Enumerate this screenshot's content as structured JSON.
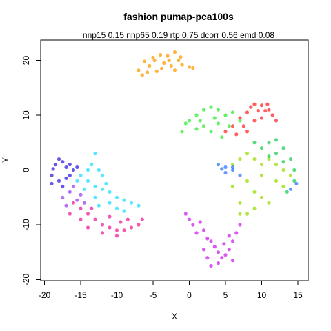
{
  "chart_data": {
    "type": "scatter",
    "title": "fashion pumap-pca100s",
    "subtitle": "nnp15 0.15 nnp65 0.19 rtp 0.75 dcorr 0.56 emd 0.08",
    "xlabel": "X",
    "ylabel": "Y",
    "xlim": [
      -21,
      16
    ],
    "ylim": [
      -20,
      24
    ],
    "x_ticks": [
      -20,
      -15,
      -10,
      -5,
      0,
      5,
      10,
      15
    ],
    "y_ticks": [
      -20,
      -10,
      0,
      10,
      20
    ],
    "grid": false,
    "legend": "none",
    "clusters": [
      {
        "color": "#ff9900",
        "points": [
          [
            -7,
            18.2
          ],
          [
            -6.2,
            19.8
          ],
          [
            -5.5,
            19
          ],
          [
            -5,
            20.5
          ],
          [
            -4.5,
            18
          ],
          [
            -4,
            21
          ],
          [
            -3.5,
            19.5
          ],
          [
            -3,
            20.8
          ],
          [
            -2.5,
            19
          ],
          [
            -2,
            21.5
          ],
          [
            -1.5,
            20
          ],
          [
            -1,
            19.2
          ],
          [
            0,
            18.8
          ],
          [
            0.5,
            18.6
          ],
          [
            -6.5,
            17.3
          ],
          [
            -5.8,
            17.8
          ],
          [
            -4.8,
            20
          ],
          [
            -3.8,
            18.5
          ],
          [
            -2.8,
            20
          ],
          [
            -2,
            18.2
          ],
          [
            -1.2,
            20.6
          ]
        ]
      },
      {
        "color": "#ff2a2a",
        "points": [
          [
            5,
            7
          ],
          [
            6,
            8
          ],
          [
            7,
            9.5
          ],
          [
            8,
            10.5
          ],
          [
            8.5,
            11.5
          ],
          [
            9,
            12
          ],
          [
            10,
            11.8
          ],
          [
            10.5,
            10.8
          ],
          [
            11,
            11
          ],
          [
            11.5,
            10
          ],
          [
            7.5,
            8
          ],
          [
            9,
            9
          ],
          [
            10,
            9.5
          ],
          [
            12,
            9
          ],
          [
            6.5,
            6.5
          ],
          [
            8,
            7
          ],
          [
            9.5,
            10.8
          ],
          [
            10.8,
            12
          ]
        ]
      },
      {
        "color": "#33ee33",
        "points": [
          [
            -1,
            7
          ],
          [
            0,
            9
          ],
          [
            1,
            10
          ],
          [
            2,
            11
          ],
          [
            3,
            11.5
          ],
          [
            4,
            11
          ],
          [
            5,
            10
          ],
          [
            6,
            10.5
          ],
          [
            7,
            9
          ],
          [
            2,
            8
          ],
          [
            3,
            7
          ],
          [
            1,
            7.5
          ],
          [
            4,
            8.5
          ],
          [
            5.5,
            8
          ],
          [
            -0.5,
            8.5
          ],
          [
            3.5,
            9.5
          ],
          [
            1.5,
            9
          ],
          [
            4.5,
            6
          ]
        ]
      },
      {
        "color": "#99dd00",
        "points": [
          [
            6,
            1
          ],
          [
            7,
            2
          ],
          [
            8,
            3
          ],
          [
            9,
            2
          ],
          [
            10,
            1
          ],
          [
            11,
            2
          ],
          [
            12,
            1
          ],
          [
            13,
            0
          ],
          [
            14,
            -1
          ],
          [
            8,
            -2
          ],
          [
            9,
            -4
          ],
          [
            10,
            -5
          ],
          [
            11,
            -6
          ],
          [
            7,
            -6
          ],
          [
            8,
            -8
          ],
          [
            12,
            -2
          ],
          [
            13,
            -3
          ],
          [
            10,
            -1
          ],
          [
            6,
            -3
          ],
          [
            9,
            -7
          ],
          [
            7,
            -8
          ]
        ]
      },
      {
        "color": "#22cc55",
        "points": [
          [
            9,
            5
          ],
          [
            10,
            4
          ],
          [
            11,
            5
          ],
          [
            12,
            5.5
          ],
          [
            13,
            4
          ],
          [
            14,
            2
          ],
          [
            14.5,
            0
          ],
          [
            14.5,
            -2
          ],
          [
            13.5,
            -4
          ],
          [
            12,
            3
          ],
          [
            11,
            2.5
          ],
          [
            13,
            1.5
          ]
        ]
      },
      {
        "color": "#3377ff",
        "points": [
          [
            4,
            1
          ],
          [
            5,
            0.5
          ],
          [
            6,
            0
          ],
          [
            7,
            -1
          ],
          [
            5,
            -0.5
          ],
          [
            6,
            0.5
          ],
          [
            14.8,
            -2.5
          ],
          [
            14,
            -3.5
          ],
          [
            4.5,
            0.2
          ]
        ]
      },
      {
        "color": "#cc22ee",
        "points": [
          [
            -0.5,
            -8
          ],
          [
            0,
            -9
          ],
          [
            0.5,
            -10
          ],
          [
            1,
            -11.5
          ],
          [
            2,
            -11
          ],
          [
            2.5,
            -12.5
          ],
          [
            3,
            -13
          ],
          [
            3.5,
            -14
          ],
          [
            4,
            -15
          ],
          [
            4.5,
            -16
          ],
          [
            5,
            -15.5
          ],
          [
            5.5,
            -14.5
          ],
          [
            4,
            -17
          ],
          [
            3,
            -17.5
          ],
          [
            2.5,
            -16
          ],
          [
            6,
            -13
          ],
          [
            6.5,
            -11.5
          ],
          [
            7,
            -10
          ],
          [
            5.5,
            -12
          ],
          [
            1.5,
            -9.5
          ],
          [
            2,
            -14.5
          ],
          [
            6,
            -16.5
          ],
          [
            4.8,
            -13.5
          ]
        ]
      },
      {
        "color": "#3322dd",
        "points": [
          [
            -19,
            -1
          ],
          [
            -18.5,
            1
          ],
          [
            -18,
            2
          ],
          [
            -17.5,
            1.5
          ],
          [
            -17,
            0.5
          ],
          [
            -16.5,
            1
          ],
          [
            -18,
            -2
          ],
          [
            -17.5,
            -3
          ],
          [
            -16.5,
            -1
          ],
          [
            -16,
            0
          ],
          [
            -15.5,
            0.5
          ],
          [
            -19,
            -2.5
          ],
          [
            -17,
            -1.5
          ],
          [
            -18.8,
            0.2
          ]
        ]
      },
      {
        "color": "#22ddff",
        "points": [
          [
            -15,
            -1
          ],
          [
            -14,
            0
          ],
          [
            -13.5,
            1
          ],
          [
            -13,
            3
          ],
          [
            -12.5,
            0
          ],
          [
            -12,
            -1
          ],
          [
            -14,
            -2
          ],
          [
            -13,
            -3
          ],
          [
            -12,
            -3.5
          ],
          [
            -11,
            -4
          ],
          [
            -10,
            -5
          ],
          [
            -9,
            -5.5
          ],
          [
            -8,
            -6
          ],
          [
            -7,
            -6.5
          ],
          [
            -11,
            -6
          ],
          [
            -10,
            -7
          ],
          [
            -9,
            -7.5
          ],
          [
            -14.5,
            -3.5
          ],
          [
            -13,
            -5
          ],
          [
            -15.5,
            -2
          ],
          [
            -12.5,
            -6.5
          ],
          [
            -11.5,
            -2.5
          ]
        ]
      },
      {
        "color": "#ee2299",
        "points": [
          [
            -16,
            -6
          ],
          [
            -15,
            -7
          ],
          [
            -14,
            -8
          ],
          [
            -13,
            -9
          ],
          [
            -12,
            -10
          ],
          [
            -11,
            -10.5
          ],
          [
            -10,
            -11
          ],
          [
            -9,
            -11
          ],
          [
            -8,
            -10.5
          ],
          [
            -7,
            -10
          ],
          [
            -6.5,
            -9
          ],
          [
            -15,
            -9
          ],
          [
            -14,
            -10.5
          ],
          [
            -12,
            -11.5
          ],
          [
            -10,
            -12
          ],
          [
            -8.5,
            -9
          ],
          [
            -13.5,
            -7
          ],
          [
            -11,
            -8.5
          ],
          [
            -9.5,
            -9.5
          ],
          [
            -16.5,
            -8
          ]
        ]
      },
      {
        "color": "#9944ee",
        "points": [
          [
            -17.5,
            -5
          ],
          [
            -16.5,
            -4
          ],
          [
            -15.5,
            -5.5
          ],
          [
            -16,
            -3
          ],
          [
            -17,
            -6.5
          ],
          [
            -15,
            -4.5
          ],
          [
            -14.5,
            -6
          ]
        ]
      }
    ]
  }
}
